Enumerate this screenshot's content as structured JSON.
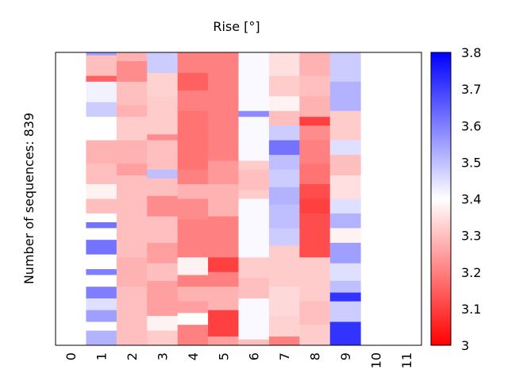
{
  "chart_data": {
    "type": "heatmap",
    "title": "Rise [°]",
    "xlabel": "",
    "ylabel": "Number of sequences: 839",
    "n_rows": 839,
    "x_ticks": [
      "0",
      "1",
      "2",
      "3",
      "4",
      "5",
      "6",
      "7",
      "8",
      "9",
      "10",
      "11"
    ],
    "colorbar": {
      "vmin": 3.0,
      "vmax": 3.8,
      "center": 3.4,
      "colormap": "bwr_reversed",
      "low_color": "#ff0000",
      "mid_color": "#ffffff",
      "high_color": "#0000ff",
      "ticks": [
        "3",
        "3.1",
        "3.2",
        "3.3",
        "3.4",
        "3.5",
        "3.6",
        "3.7",
        "3.8"
      ]
    },
    "columns": [
      {
        "x": 1,
        "segments": [
          [
            0,
            0.01,
            3.55
          ],
          [
            0.01,
            0.08,
            3.3
          ],
          [
            0.08,
            0.1,
            3.15
          ],
          [
            0.1,
            0.17,
            3.42
          ],
          [
            0.17,
            0.22,
            3.48
          ],
          [
            0.22,
            0.3,
            3.4
          ],
          [
            0.3,
            0.38,
            3.28
          ],
          [
            0.38,
            0.45,
            3.3
          ],
          [
            0.45,
            0.5,
            3.38
          ],
          [
            0.5,
            0.55,
            3.3
          ],
          [
            0.55,
            0.58,
            3.4
          ],
          [
            0.58,
            0.6,
            3.62
          ],
          [
            0.6,
            0.64,
            3.4
          ],
          [
            0.64,
            0.69,
            3.62
          ],
          [
            0.69,
            0.74,
            3.4
          ],
          [
            0.74,
            0.76,
            3.6
          ],
          [
            0.76,
            0.8,
            3.4
          ],
          [
            0.8,
            0.84,
            3.6
          ],
          [
            0.84,
            0.88,
            3.45
          ],
          [
            0.88,
            0.92,
            3.55
          ],
          [
            0.92,
            0.95,
            3.4
          ],
          [
            0.95,
            1.0,
            3.52
          ]
        ]
      },
      {
        "x": 2,
        "segments": [
          [
            0,
            0.03,
            3.28
          ],
          [
            0.03,
            0.1,
            3.22
          ],
          [
            0.1,
            0.18,
            3.3
          ],
          [
            0.18,
            0.22,
            3.28
          ],
          [
            0.22,
            0.3,
            3.32
          ],
          [
            0.3,
            0.38,
            3.28
          ],
          [
            0.38,
            0.42,
            3.25
          ],
          [
            0.42,
            0.5,
            3.3
          ],
          [
            0.5,
            0.6,
            3.3
          ],
          [
            0.6,
            0.7,
            3.3
          ],
          [
            0.7,
            0.8,
            3.28
          ],
          [
            0.8,
            0.9,
            3.3
          ],
          [
            0.9,
            1.0,
            3.3
          ]
        ]
      },
      {
        "x": 3,
        "segments": [
          [
            0,
            0.07,
            3.48
          ],
          [
            0.07,
            0.15,
            3.33
          ],
          [
            0.15,
            0.28,
            3.32
          ],
          [
            0.28,
            0.3,
            3.22
          ],
          [
            0.3,
            0.4,
            3.3
          ],
          [
            0.4,
            0.43,
            3.5
          ],
          [
            0.43,
            0.49,
            3.3
          ],
          [
            0.49,
            0.52,
            3.22
          ],
          [
            0.52,
            0.56,
            3.22
          ],
          [
            0.56,
            0.6,
            3.3
          ],
          [
            0.6,
            0.65,
            3.3
          ],
          [
            0.65,
            0.72,
            3.25
          ],
          [
            0.72,
            0.78,
            3.3
          ],
          [
            0.78,
            0.84,
            3.25
          ],
          [
            0.84,
            0.9,
            3.25
          ],
          [
            0.9,
            0.95,
            3.38
          ],
          [
            0.95,
            1.0,
            3.32
          ]
        ]
      },
      {
        "x": 4,
        "segments": [
          [
            0,
            0.07,
            3.2
          ],
          [
            0.07,
            0.13,
            3.15
          ],
          [
            0.13,
            0.2,
            3.2
          ],
          [
            0.2,
            0.3,
            3.18
          ],
          [
            0.3,
            0.4,
            3.18
          ],
          [
            0.4,
            0.45,
            3.2
          ],
          [
            0.45,
            0.5,
            3.28
          ],
          [
            0.5,
            0.57,
            3.22
          ],
          [
            0.57,
            0.63,
            3.2
          ],
          [
            0.63,
            0.7,
            3.2
          ],
          [
            0.7,
            0.76,
            3.38
          ],
          [
            0.76,
            0.8,
            3.2
          ],
          [
            0.8,
            0.85,
            3.28
          ],
          [
            0.85,
            0.89,
            3.25
          ],
          [
            0.89,
            0.93,
            3.4
          ],
          [
            0.93,
            1.0,
            3.2
          ]
        ]
      },
      {
        "x": 5,
        "segments": [
          [
            0,
            0.37,
            3.2
          ],
          [
            0.37,
            0.45,
            3.24
          ],
          [
            0.45,
            0.56,
            3.28
          ],
          [
            0.56,
            0.62,
            3.2
          ],
          [
            0.62,
            0.7,
            3.2
          ],
          [
            0.7,
            0.75,
            3.1
          ],
          [
            0.75,
            0.8,
            3.2
          ],
          [
            0.8,
            0.88,
            3.28
          ],
          [
            0.88,
            0.92,
            3.1
          ],
          [
            0.92,
            0.97,
            3.1
          ],
          [
            0.97,
            1.0,
            3.25
          ]
        ]
      },
      {
        "x": 6,
        "segments": [
          [
            0,
            0.2,
            3.41
          ],
          [
            0.2,
            0.22,
            3.58
          ],
          [
            0.22,
            0.37,
            3.41
          ],
          [
            0.37,
            0.4,
            3.32
          ],
          [
            0.4,
            0.47,
            3.3
          ],
          [
            0.47,
            0.5,
            3.32
          ],
          [
            0.5,
            0.6,
            3.41
          ],
          [
            0.6,
            0.7,
            3.41
          ],
          [
            0.7,
            0.77,
            3.32
          ],
          [
            0.77,
            0.8,
            3.3
          ],
          [
            0.8,
            0.84,
            3.3
          ],
          [
            0.84,
            0.98,
            3.41
          ],
          [
            0.98,
            1.0,
            3.3
          ]
        ]
      },
      {
        "x": 7,
        "segments": [
          [
            0,
            0.08,
            3.35
          ],
          [
            0.08,
            0.15,
            3.32
          ],
          [
            0.15,
            0.2,
            3.38
          ],
          [
            0.2,
            0.25,
            3.3
          ],
          [
            0.25,
            0.3,
            3.48
          ],
          [
            0.3,
            0.35,
            3.62
          ],
          [
            0.35,
            0.4,
            3.5
          ],
          [
            0.4,
            0.46,
            3.48
          ],
          [
            0.46,
            0.52,
            3.52
          ],
          [
            0.52,
            0.6,
            3.5
          ],
          [
            0.6,
            0.66,
            3.48
          ],
          [
            0.66,
            0.7,
            3.32
          ],
          [
            0.7,
            0.8,
            3.32
          ],
          [
            0.8,
            0.9,
            3.34
          ],
          [
            0.9,
            0.97,
            3.33
          ],
          [
            0.97,
            1.0,
            3.2
          ]
        ]
      },
      {
        "x": 8,
        "segments": [
          [
            0,
            0.08,
            3.28
          ],
          [
            0.08,
            0.15,
            3.3
          ],
          [
            0.15,
            0.2,
            3.28
          ],
          [
            0.2,
            0.22,
            3.28
          ],
          [
            0.22,
            0.25,
            3.1
          ],
          [
            0.25,
            0.3,
            3.22
          ],
          [
            0.3,
            0.38,
            3.2
          ],
          [
            0.38,
            0.45,
            3.18
          ],
          [
            0.45,
            0.5,
            3.12
          ],
          [
            0.5,
            0.55,
            3.1
          ],
          [
            0.55,
            0.6,
            3.12
          ],
          [
            0.6,
            0.7,
            3.12
          ],
          [
            0.7,
            0.75,
            3.32
          ],
          [
            0.75,
            0.85,
            3.32
          ],
          [
            0.85,
            0.93,
            3.3
          ],
          [
            0.93,
            1.0,
            3.32
          ]
        ]
      },
      {
        "x": 9,
        "segments": [
          [
            0,
            0.1,
            3.48
          ],
          [
            0.1,
            0.2,
            3.52
          ],
          [
            0.2,
            0.3,
            3.32
          ],
          [
            0.3,
            0.35,
            3.45
          ],
          [
            0.35,
            0.42,
            3.3
          ],
          [
            0.42,
            0.5,
            3.35
          ],
          [
            0.5,
            0.55,
            3.45
          ],
          [
            0.55,
            0.6,
            3.52
          ],
          [
            0.6,
            0.65,
            3.38
          ],
          [
            0.65,
            0.72,
            3.55
          ],
          [
            0.72,
            0.78,
            3.45
          ],
          [
            0.78,
            0.82,
            3.5
          ],
          [
            0.82,
            0.85,
            3.72
          ],
          [
            0.85,
            0.92,
            3.48
          ],
          [
            0.92,
            1.0,
            3.72
          ]
        ]
      }
    ]
  }
}
